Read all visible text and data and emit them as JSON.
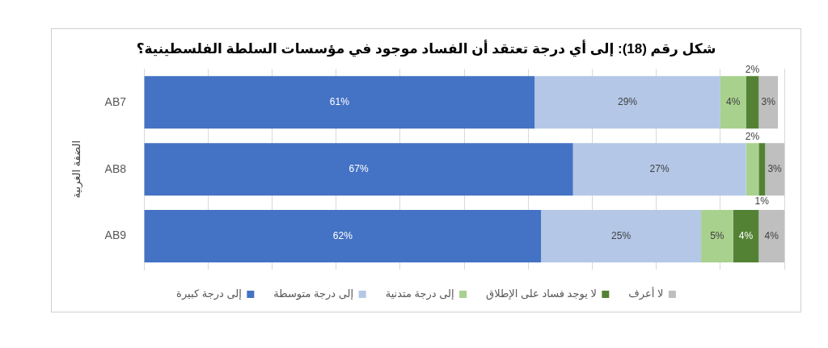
{
  "chart_data": {
    "type": "bar",
    "orientation": "horizontal",
    "stacked": true,
    "title": "شكل رقم (18): إلى أي درجة تعتقد أن الفساد موجود في مؤسسات السلطة الفلسطينية؟",
    "ylabel": "الضفة الغربية",
    "categories": [
      "AB7",
      "AB8",
      "AB9"
    ],
    "series": [
      {
        "name": "إلى درجة كبيرة",
        "color": "#4472c4",
        "values": [
          61,
          67,
          62
        ],
        "value_labels": [
          "61%",
          "67%",
          "62%"
        ]
      },
      {
        "name": "إلى درجة متوسطة",
        "color": "#b4c7e7",
        "values": [
          29,
          27,
          25
        ],
        "value_labels": [
          "29%",
          "27%",
          "25%"
        ]
      },
      {
        "name": "إلى درجة متدنية",
        "color": "#a9d18e",
        "values": [
          4,
          2,
          5
        ],
        "value_labels": [
          "4%",
          "2%",
          "5%"
        ]
      },
      {
        "name": "لا يوجد فساد على الإطلاق",
        "color": "#548235",
        "values": [
          2,
          1,
          4
        ],
        "value_labels": [
          "2%",
          "1%",
          "4%"
        ]
      },
      {
        "name": "لا أعرف",
        "color": "#bfbfbf",
        "values": [
          3,
          3,
          4
        ],
        "value_labels": [
          "3%",
          "3%",
          "4%"
        ]
      }
    ],
    "tick_labels": "y",
    "grid": "x",
    "legend": "bottom"
  }
}
